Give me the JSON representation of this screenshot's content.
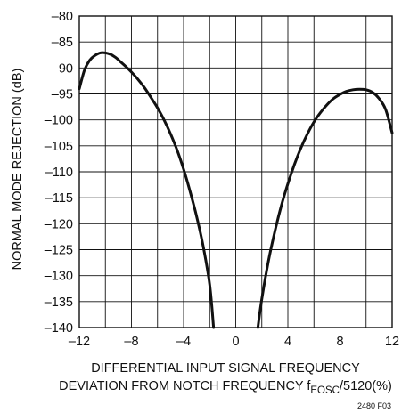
{
  "chart_data": {
    "type": "line",
    "xlabel_line1": "DIFFERENTIAL INPUT SIGNAL FREQUENCY",
    "xlabel_line2_prefix": "DEVIATION FROM NOTCH FREQUENCY f",
    "xlabel_line2_subscript": "EOSC",
    "xlabel_line2_suffix": "/5120(%)",
    "ylabel": "NORMAL MODE REJECTION (dB)",
    "figure_id": "2480 F03",
    "xlim": [
      -12,
      12
    ],
    "ylim": [
      -140,
      -80
    ],
    "xticks": [
      -12,
      -8,
      -4,
      0,
      4,
      8,
      12
    ],
    "xtick_labels": [
      "–12",
      "–8",
      "–4",
      "0",
      "4",
      "8",
      "12"
    ],
    "xgrid_step": 2,
    "yticks": [
      -80,
      -85,
      -90,
      -95,
      -100,
      -105,
      -110,
      -115,
      -120,
      -125,
      -130,
      -135,
      -140
    ],
    "ytick_labels": [
      "–80",
      "–85",
      "–90",
      "–95",
      "–100",
      "–105",
      "–110",
      "–115",
      "–120",
      "–125",
      "–130",
      "–135",
      "–140"
    ],
    "grid": true,
    "series": [
      {
        "segments": [
          {
            "x": [
              -12,
              -11.6,
              -11.2,
              -10.8,
              -10.4,
              -10.0,
              -9.6,
              -9.2,
              -8.8,
              -8.4,
              -8.0,
              -7.5,
              -7.0,
              -6.5,
              -6.0,
              -5.5,
              -5.0,
              -4.5,
              -4.0,
              -3.5,
              -3.0,
              -2.5,
              -2.0,
              -1.7
            ],
            "y": [
              -94.0,
              -90.4,
              -88.5,
              -87.6,
              -87.1,
              -87.1,
              -87.4,
              -88.0,
              -88.9,
              -89.8,
              -90.8,
              -92.2,
              -93.8,
              -95.7,
              -97.7,
              -100.0,
              -102.7,
              -105.8,
              -109.5,
              -113.8,
              -118.6,
              -124.3,
              -131.7,
              -140.0
            ]
          },
          {
            "x": [
              1.7,
              2.0,
              2.5,
              3.0,
              3.5,
              4.0,
              4.5,
              5.0,
              5.5,
              6.0,
              6.5,
              7.0,
              7.5,
              8.0,
              8.5,
              9.0,
              9.5,
              10.0,
              10.5,
              11.0,
              11.5,
              12.0
            ],
            "y": [
              -140.0,
              -134.5,
              -127.3,
              -121.5,
              -116.5,
              -112.3,
              -108.6,
              -105.4,
              -102.7,
              -100.4,
              -98.6,
              -97.1,
              -95.9,
              -95.1,
              -94.5,
              -94.2,
              -94.1,
              -94.2,
              -94.7,
              -95.9,
              -98.0,
              -102.5
            ]
          }
        ]
      }
    ]
  }
}
